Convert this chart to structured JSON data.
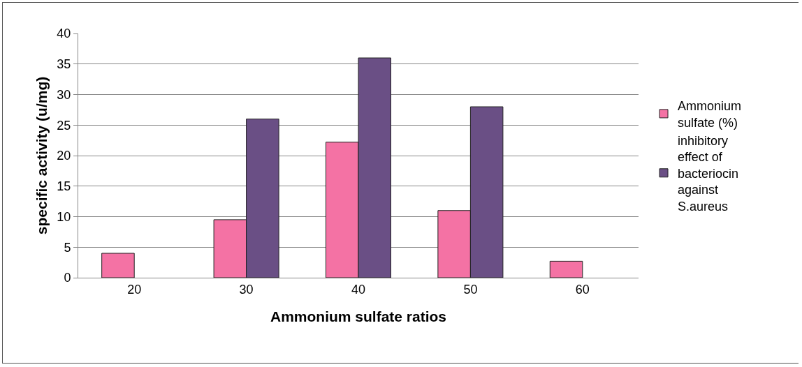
{
  "chart_data": {
    "type": "bar",
    "xlabel": "Ammonium sulfate ratios",
    "ylabel": "specific activity (u/mg)",
    "categories": [
      "20",
      "30",
      "40",
      "50",
      "60"
    ],
    "series": [
      {
        "name": "Ammonium sulfate (%)",
        "color": "#f472a4",
        "values": [
          4,
          9.5,
          22.2,
          11,
          2.7
        ]
      },
      {
        "name": "inhibitory effect of bacteriocin against S.aureus",
        "color": "#6a4f85",
        "values": [
          null,
          26,
          36,
          28,
          null
        ]
      }
    ],
    "ylim": [
      0,
      40
    ],
    "yticks": [
      0,
      5,
      10,
      15,
      20,
      25,
      30,
      35,
      40
    ],
    "grid": "y",
    "legend": "right"
  }
}
